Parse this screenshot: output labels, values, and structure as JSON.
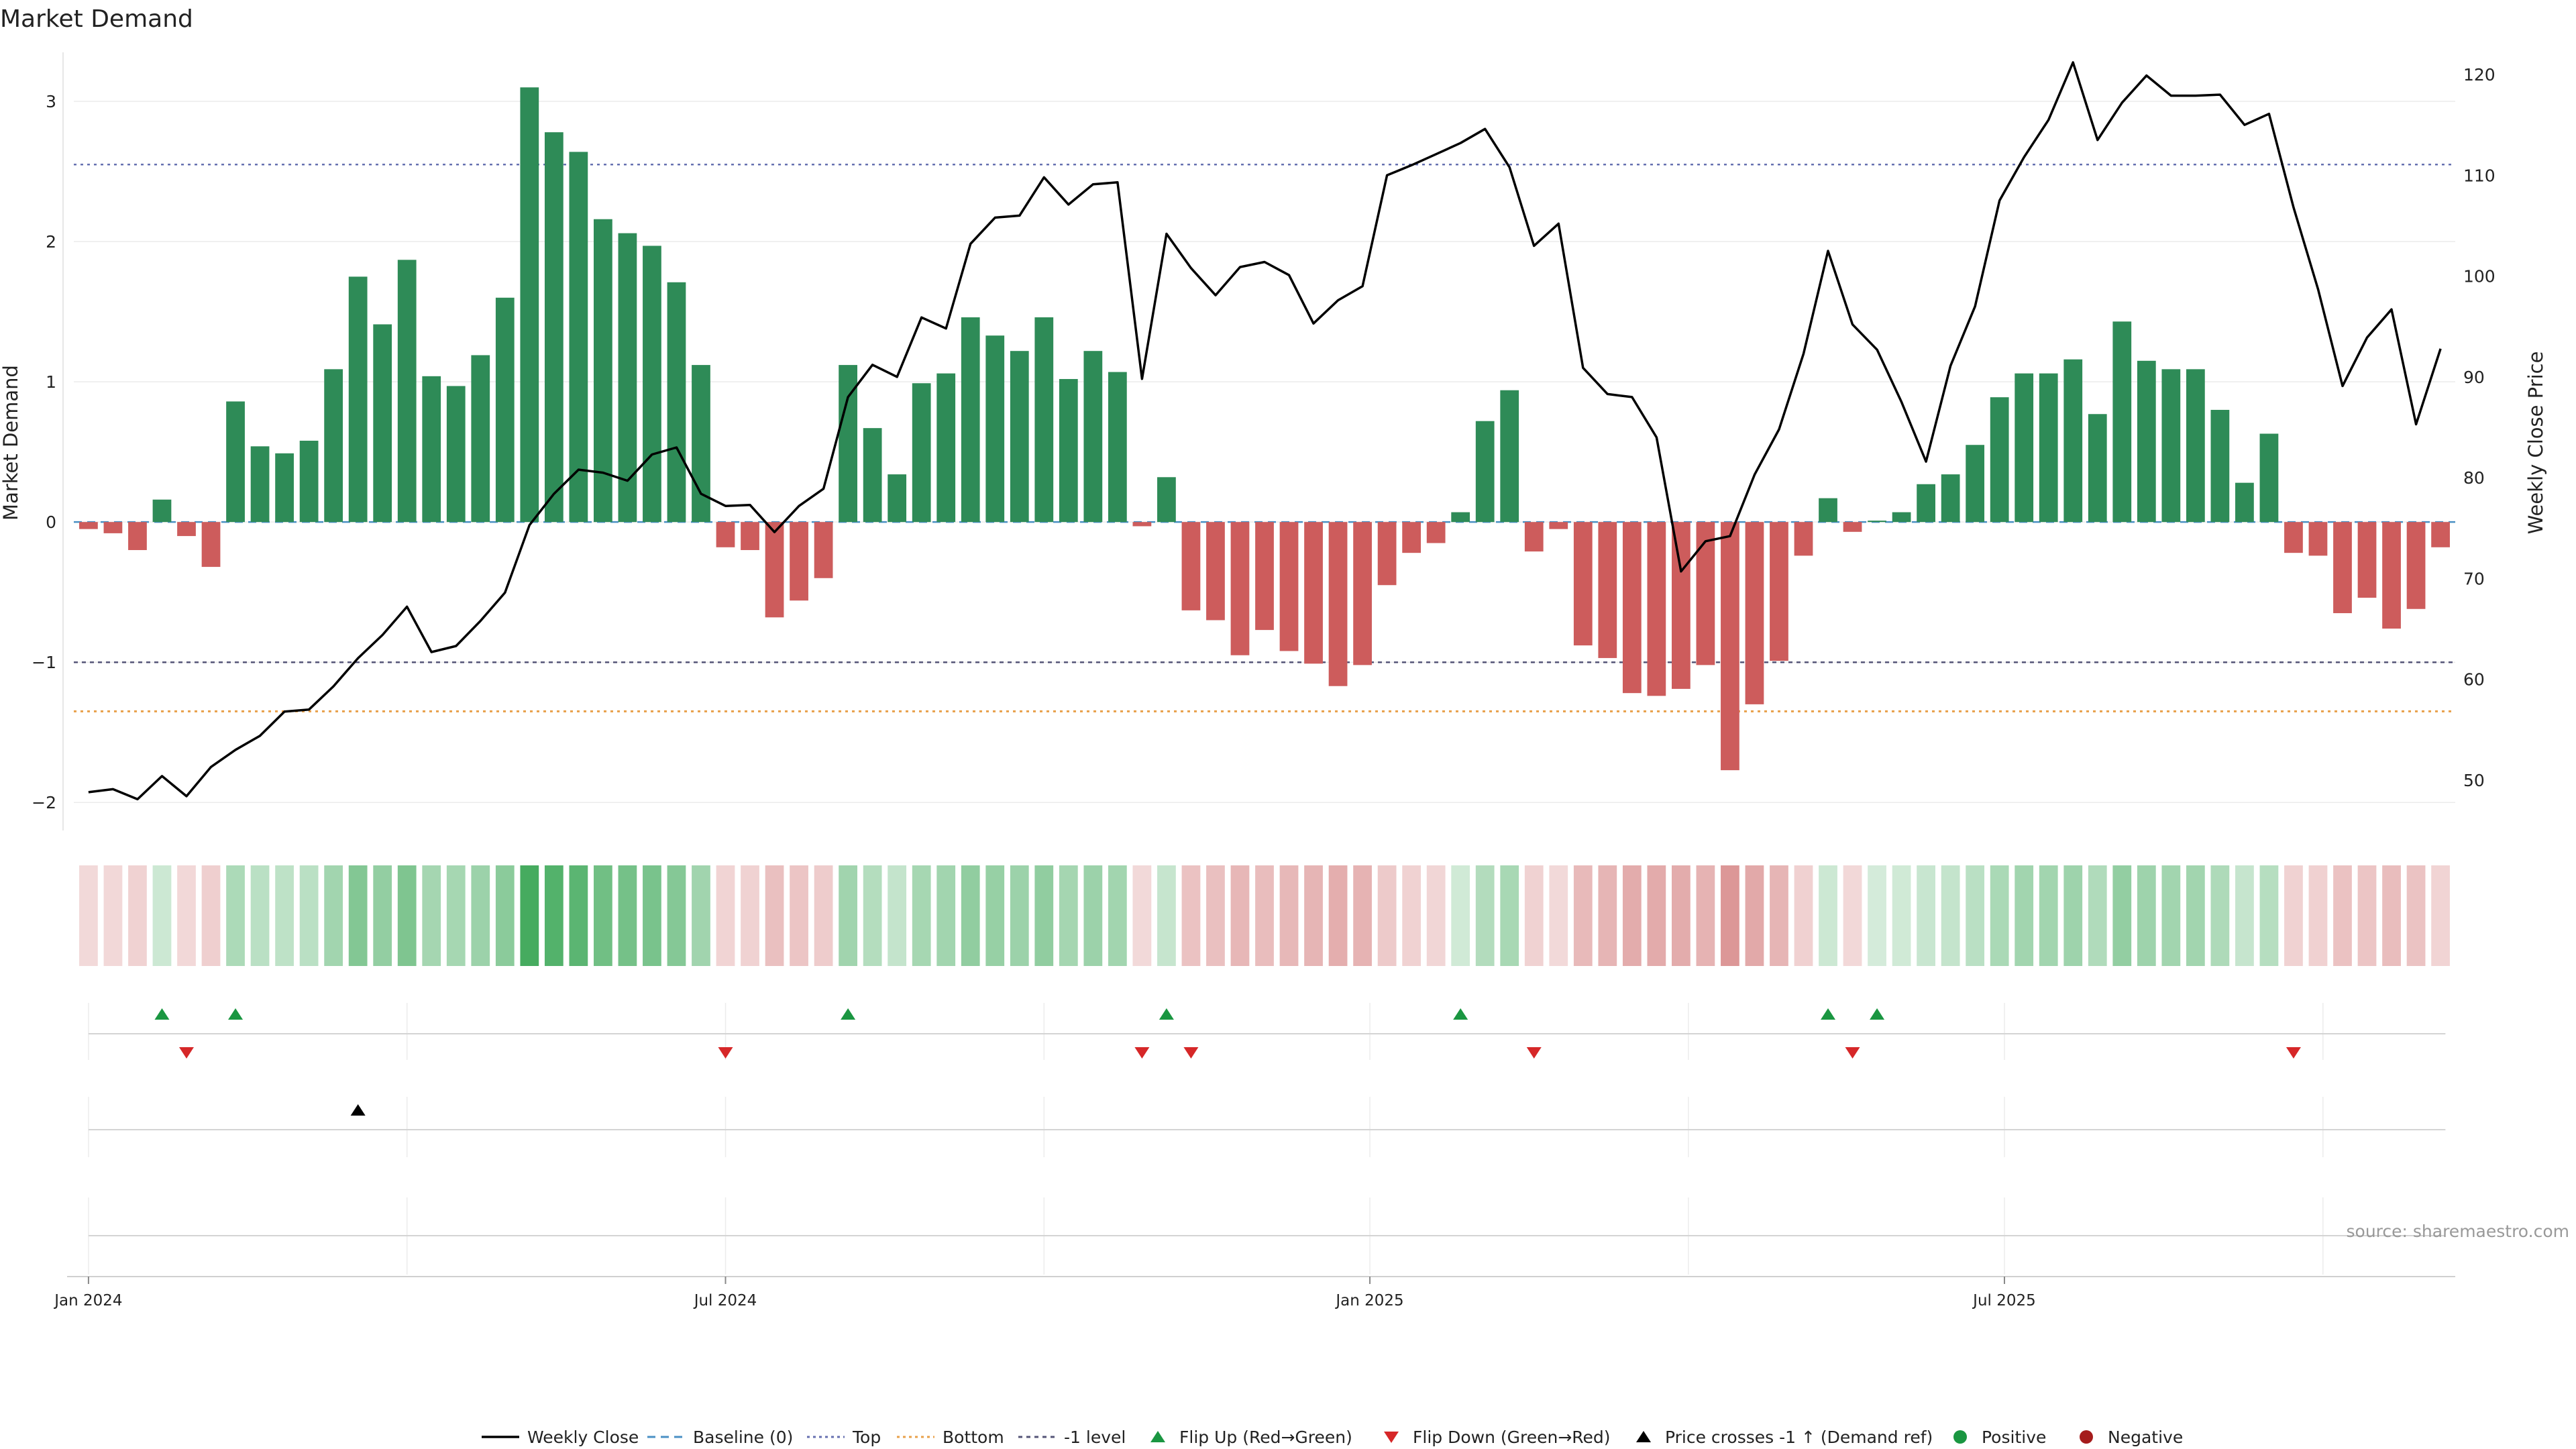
{
  "chart_data": {
    "type": "bar",
    "title": "Market Demand",
    "ylabel": "Market Demand",
    "y2label": "Weekly Close Price",
    "ylim": [
      -2.2,
      3.35
    ],
    "y2lim": [
      45,
      122.2
    ],
    "yticks": [
      -2,
      -1,
      0,
      1,
      2,
      3
    ],
    "yticks_labels": [
      "−2",
      "−1",
      "0",
      "1",
      "2",
      "3"
    ],
    "y2ticks": [
      50,
      60,
      70,
      80,
      90,
      100,
      110,
      120
    ],
    "y2ticks_labels": [
      "50",
      "60",
      "70",
      "80",
      "90",
      "100",
      "110",
      "120"
    ],
    "x_index_range": [
      -0.6,
      96.6
    ],
    "date_ticks": [
      {
        "label": "Jan 2024",
        "x": 0
      },
      {
        "label": "Jul 2024",
        "x": 26
      },
      {
        "label": "Jan 2025",
        "x": 52.3
      },
      {
        "label": "Jul 2025",
        "x": 78.2
      }
    ],
    "month_gridlines": [
      0,
      13,
      26,
      39,
      52.3,
      65.3,
      78.2,
      91.2
    ],
    "reference_lines": {
      "top": 2.55,
      "bottom": -1.35,
      "minus_one": -1,
      "baseline": 0
    },
    "series": [
      {
        "name": "Market Demand",
        "values": [
          -0.05,
          -0.08,
          -0.2,
          0.16,
          -0.1,
          -0.32,
          0.86,
          0.54,
          0.49,
          0.58,
          1.09,
          1.75,
          1.41,
          1.87,
          1.04,
          0.97,
          1.19,
          1.6,
          3.1,
          2.78,
          2.64,
          2.16,
          2.06,
          1.97,
          1.71,
          1.12,
          -0.18,
          -0.2,
          -0.68,
          -0.56,
          -0.4,
          1.12,
          0.67,
          0.34,
          0.99,
          1.06,
          1.46,
          1.33,
          1.22,
          1.46,
          1.02,
          1.22,
          1.07,
          -0.03,
          0.32,
          -0.63,
          -0.7,
          -0.95,
          -0.77,
          -0.92,
          -1.01,
          -1.17,
          -1.02,
          -0.45,
          -0.22,
          -0.15,
          0.07,
          0.72,
          0.94,
          -0.21,
          -0.05,
          -0.88,
          -0.97,
          -1.22,
          -1.24,
          -1.19,
          -1.02,
          -1.77,
          -1.3,
          -0.99,
          -0.24,
          0.17,
          -0.07,
          0.01,
          0.07,
          0.27,
          0.34,
          0.55,
          0.89,
          1.06,
          1.06,
          1.16,
          0.77,
          1.43,
          1.15,
          1.09,
          1.09,
          0.8,
          0.28,
          0.63,
          -0.22,
          -0.24,
          -0.65,
          -0.54,
          -0.76,
          -0.62,
          -0.18
        ]
      },
      {
        "name": "Weekly Close",
        "axis": "right",
        "values": [
          48.8,
          49.1,
          48.1,
          50.4,
          48.4,
          51.3,
          53.0,
          54.4,
          56.8,
          57.0,
          59.3,
          62.1,
          64.4,
          67.2,
          62.7,
          63.3,
          65.8,
          68.6,
          75.3,
          78.4,
          80.8,
          80.5,
          79.7,
          82.3,
          83.0,
          78.4,
          77.2,
          77.3,
          74.6,
          77.2,
          78.9,
          88.0,
          91.2,
          90.0,
          95.9,
          94.8,
          103.2,
          105.8,
          106.0,
          109.8,
          107.1,
          109.1,
          109.3,
          89.8,
          104.2,
          100.8,
          98.1,
          100.9,
          101.4,
          100.1,
          95.3,
          97.6,
          99.0,
          110.0,
          111.0,
          112.1,
          113.2,
          114.6,
          110.8,
          103.0,
          105.2,
          90.9,
          88.3,
          88.0,
          84.0,
          70.7,
          73.7,
          74.2,
          80.3,
          84.8,
          92.3,
          102.5,
          95.2,
          92.7,
          87.5,
          81.6,
          91.1,
          97.0,
          107.5,
          111.8,
          115.5,
          121.2,
          113.5,
          117.2,
          119.9,
          117.9,
          117.9,
          118.0,
          115.0,
          116.1,
          106.8,
          98.7,
          89.1,
          93.9,
          96.7,
          85.3,
          92.8
        ]
      }
    ],
    "flip_up_indices": [
      3,
      6,
      31,
      44,
      56,
      71,
      73
    ],
    "flip_down_indices": [
      4,
      26,
      43,
      45,
      59,
      72,
      90
    ],
    "price_cross_indices": [
      11
    ],
    "colors": {
      "bar_positive": "#2e8b57",
      "bar_negative": "#cd5c5c",
      "price_line": "#000000",
      "baseline": "#4a90c4",
      "top_line": "#6670b0",
      "bottom_line": "#e8a04a",
      "minus_one_line": "#555577",
      "flip_up": "#1a9641",
      "flip_down": "#d62728",
      "cross_marker": "#000000",
      "positive_dot": "#1a9641",
      "negative_dot": "#a51c1c",
      "heat_positive": "#3aa655",
      "heat_negative": "#c85a5a"
    },
    "legend": {
      "position": "bottom-center",
      "items": [
        {
          "label": "Weekly Close",
          "icon": "solid-line-icon"
        },
        {
          "label": "Baseline (0)",
          "icon": "dashed-line-icon"
        },
        {
          "label": "Top",
          "icon": "dotted-line-icon"
        },
        {
          "label": "Bottom",
          "icon": "dotted-line-icon"
        },
        {
          "label": "-1 level",
          "icon": "dashed-line-icon"
        },
        {
          "label": "Flip Up (Red→Green)",
          "icon": "triangle-up-icon"
        },
        {
          "label": "Flip Down (Green→Red)",
          "icon": "triangle-down-icon"
        },
        {
          "label": "Price crosses -1 ↑ (Demand ref)",
          "icon": "triangle-up-icon"
        },
        {
          "label": "Positive",
          "icon": "circle-icon"
        },
        {
          "label": "Negative",
          "icon": "circle-icon"
        }
      ]
    },
    "source": "source: sharemaestro.com"
  }
}
